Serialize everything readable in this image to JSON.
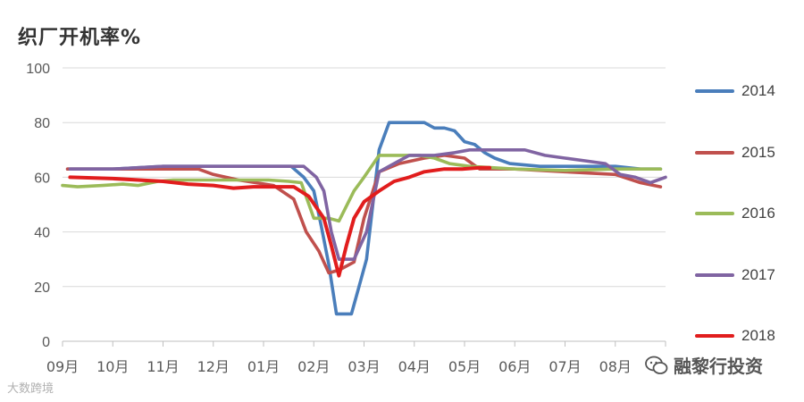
{
  "chart_data": {
    "type": "line",
    "title": "织厂开机率%",
    "xlabel": "",
    "ylabel": "",
    "ylim": [
      0,
      100
    ],
    "yticks": [
      "0",
      "20",
      "40",
      "60",
      "80",
      "100"
    ],
    "categories": [
      "09月",
      "10月",
      "11月",
      "12月",
      "01月",
      "02月",
      "03月",
      "04月",
      "05月",
      "06月",
      "07月",
      "08月"
    ],
    "x_range": [
      0,
      12
    ],
    "grid": true,
    "legend_position": "right",
    "series": [
      {
        "name": "2014",
        "color": "#4a7ebb",
        "points": [
          [
            0.1,
            63
          ],
          [
            1,
            63
          ],
          [
            2,
            64
          ],
          [
            3,
            64
          ],
          [
            4,
            64
          ],
          [
            4.55,
            64
          ],
          [
            4.8,
            60
          ],
          [
            5.0,
            55
          ],
          [
            5.15,
            42
          ],
          [
            5.3,
            28
          ],
          [
            5.45,
            10
          ],
          [
            5.6,
            10
          ],
          [
            5.75,
            10
          ],
          [
            5.9,
            20
          ],
          [
            6.05,
            30
          ],
          [
            6.3,
            70
          ],
          [
            6.5,
            80
          ],
          [
            7.0,
            80
          ],
          [
            7.2,
            80
          ],
          [
            7.4,
            78
          ],
          [
            7.6,
            78
          ],
          [
            7.8,
            77
          ],
          [
            8.0,
            73
          ],
          [
            8.2,
            72
          ],
          [
            8.4,
            69
          ],
          [
            8.6,
            67
          ],
          [
            8.9,
            65
          ],
          [
            9.5,
            64
          ],
          [
            10,
            64
          ],
          [
            10.5,
            64
          ],
          [
            11,
            64
          ],
          [
            11.5,
            63
          ],
          [
            11.9,
            63
          ]
        ]
      },
      {
        "name": "2015",
        "color": "#c0504d",
        "points": [
          [
            0.1,
            63
          ],
          [
            1,
            63
          ],
          [
            2,
            63
          ],
          [
            2.7,
            63
          ],
          [
            3.0,
            61
          ],
          [
            3.5,
            59
          ],
          [
            4.2,
            57
          ],
          [
            4.6,
            52
          ],
          [
            4.85,
            40
          ],
          [
            5.1,
            33
          ],
          [
            5.3,
            25
          ],
          [
            5.5,
            26
          ],
          [
            5.8,
            29
          ],
          [
            6.0,
            45
          ],
          [
            6.3,
            62
          ],
          [
            6.7,
            65
          ],
          [
            7.2,
            67
          ],
          [
            7.6,
            68
          ],
          [
            8.0,
            67
          ],
          [
            8.3,
            63
          ],
          [
            9,
            63
          ],
          [
            10,
            62
          ],
          [
            11,
            61
          ],
          [
            11.5,
            58
          ],
          [
            11.9,
            56.5
          ]
        ]
      },
      {
        "name": "2016",
        "color": "#9bbb59",
        "points": [
          [
            0.0,
            57
          ],
          [
            0.3,
            56.5
          ],
          [
            0.8,
            57
          ],
          [
            1.2,
            57.5
          ],
          [
            1.5,
            57
          ],
          [
            1.9,
            58.5
          ],
          [
            2.2,
            59
          ],
          [
            3,
            59
          ],
          [
            3.7,
            59
          ],
          [
            4.1,
            59
          ],
          [
            4.5,
            58.5
          ],
          [
            4.75,
            58
          ],
          [
            5.0,
            45
          ],
          [
            5.3,
            45
          ],
          [
            5.5,
            44
          ],
          [
            5.8,
            55
          ],
          [
            6.0,
            60
          ],
          [
            6.3,
            68
          ],
          [
            6.7,
            68
          ],
          [
            7.1,
            68
          ],
          [
            7.4,
            67
          ],
          [
            7.7,
            65
          ],
          [
            8.1,
            64
          ],
          [
            9,
            63
          ],
          [
            10,
            62.5
          ],
          [
            11,
            63
          ],
          [
            11.9,
            63
          ]
        ]
      },
      {
        "name": "2017",
        "color": "#8064a2",
        "points": [
          [
            0.15,
            63
          ],
          [
            1,
            63
          ],
          [
            2,
            64
          ],
          [
            3,
            64
          ],
          [
            4,
            64
          ],
          [
            4.8,
            64
          ],
          [
            5.05,
            60
          ],
          [
            5.2,
            55
          ],
          [
            5.35,
            40
          ],
          [
            5.5,
            30
          ],
          [
            5.65,
            30
          ],
          [
            5.8,
            30
          ],
          [
            6.05,
            40
          ],
          [
            6.3,
            62
          ],
          [
            6.6,
            65
          ],
          [
            6.9,
            68
          ],
          [
            7.4,
            68
          ],
          [
            7.8,
            69
          ],
          [
            8.1,
            70
          ],
          [
            8.6,
            70
          ],
          [
            9.2,
            70
          ],
          [
            9.6,
            68
          ],
          [
            10,
            67
          ],
          [
            10.4,
            66
          ],
          [
            10.8,
            65
          ],
          [
            11.1,
            61
          ],
          [
            11.4,
            60
          ],
          [
            11.7,
            58
          ],
          [
            12,
            60
          ]
        ]
      },
      {
        "name": "2018",
        "color": "#e11d1d",
        "points": [
          [
            0.15,
            60
          ],
          [
            1,
            59.5
          ],
          [
            2,
            58.5
          ],
          [
            2.5,
            57.5
          ],
          [
            3.0,
            57
          ],
          [
            3.4,
            56
          ],
          [
            3.8,
            56.5
          ],
          [
            4.2,
            56.5
          ],
          [
            4.6,
            56.5
          ],
          [
            4.9,
            53
          ],
          [
            5.05,
            49
          ],
          [
            5.2,
            45
          ],
          [
            5.35,
            35
          ],
          [
            5.5,
            24
          ],
          [
            5.65,
            35
          ],
          [
            5.8,
            45
          ],
          [
            6.0,
            51
          ],
          [
            6.3,
            55
          ],
          [
            6.6,
            58.5
          ],
          [
            6.9,
            60
          ],
          [
            7.2,
            62
          ],
          [
            7.6,
            63
          ],
          [
            7.95,
            63
          ],
          [
            8.3,
            63.5
          ],
          [
            8.5,
            63.5
          ]
        ]
      }
    ]
  },
  "watermark": {
    "left_text": "大数跨境",
    "right_text": "融黎行投资"
  }
}
